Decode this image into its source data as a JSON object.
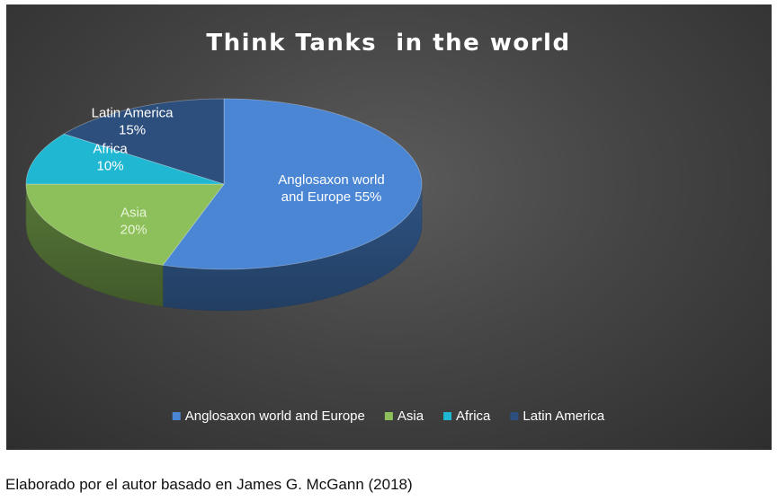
{
  "chart_data": {
    "type": "pie",
    "title": "Think Tanks  in the world",
    "slices": [
      {
        "name": "Anglosaxon world and Europe",
        "value": 55,
        "label_lines": [
          "Anglosaxon world",
          "and Europe 55%"
        ],
        "color": "#4a86d4"
      },
      {
        "name": "Asia",
        "value": 20,
        "label_lines": [
          "Asia",
          "20%"
        ],
        "color": "#8dc05a"
      },
      {
        "name": "Africa",
        "value": 10,
        "label_lines": [
          "Africa",
          "10%"
        ],
        "color": "#1fb7d1"
      },
      {
        "name": "Latin America",
        "value": 15,
        "label_lines": [
          "Latin America",
          "15%"
        ],
        "color": "#2c4f7d"
      }
    ],
    "legend_position": "bottom",
    "three_d": true
  },
  "caption": "Elaborado por el autor basado en James G. McGann (2018)"
}
